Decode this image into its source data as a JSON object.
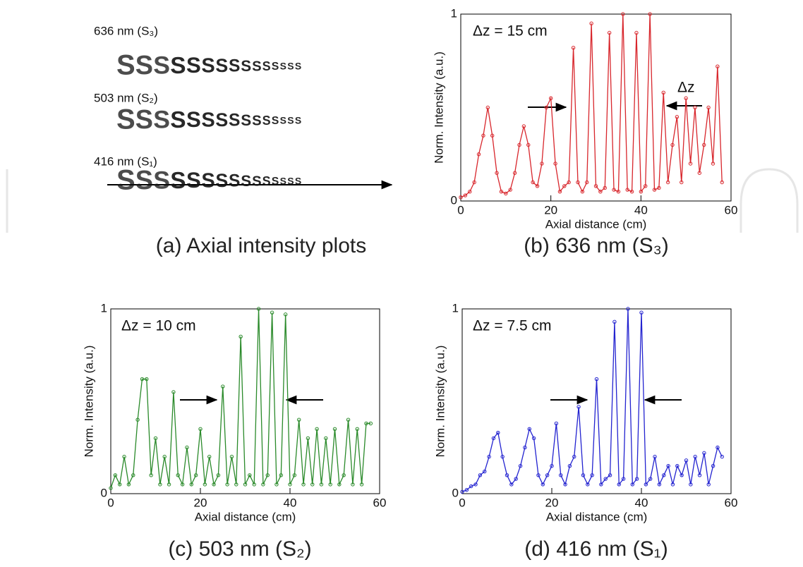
{
  "panel_a": {
    "caption": "(a) Axial intensity plots",
    "rows": [
      {
        "label": "636 nm (S₃)",
        "glyph": "S",
        "color": "#e0303a"
      },
      {
        "label": "503 nm (S₂)",
        "glyph": "S",
        "color": "#3fb83f"
      },
      {
        "label": "416 nm (S₁)",
        "glyph": "S",
        "color": "#3a6fd8"
      }
    ]
  },
  "chart_data": [
    {
      "type": "line",
      "caption": "(b) 636 nm (S₃)",
      "annotations": [
        "Δz = 15 cm",
        "Δz"
      ],
      "xlabel": "Axial distance (cm)",
      "ylabel": "Norm. Intensity (a.u.)",
      "xlim": [
        0,
        60
      ],
      "ylim": [
        0,
        1
      ],
      "xticks": [
        0,
        20,
        40,
        60
      ],
      "yticks": [
        0,
        1
      ],
      "x": [
        0,
        1,
        2,
        3,
        4,
        5,
        6,
        7,
        8,
        9,
        10,
        11,
        12,
        13,
        14,
        15,
        16,
        17,
        18,
        19,
        20,
        21,
        22,
        23,
        24,
        25,
        26,
        27,
        28,
        29,
        30,
        31,
        32,
        33,
        34,
        35,
        36,
        37,
        38,
        39,
        40,
        41,
        42,
        43,
        44,
        45,
        46,
        47,
        48,
        49,
        50,
        51,
        52,
        53,
        54,
        55,
        56,
        57,
        58
      ],
      "series": [
        {
          "color": "#d8262c",
          "values": [
            0.02,
            0.03,
            0.05,
            0.1,
            0.25,
            0.35,
            0.5,
            0.35,
            0.15,
            0.05,
            0.04,
            0.06,
            0.15,
            0.3,
            0.4,
            0.3,
            0.1,
            0.08,
            0.2,
            0.5,
            0.55,
            0.2,
            0.05,
            0.08,
            0.1,
            0.82,
            0.1,
            0.05,
            0.1,
            0.95,
            0.08,
            0.05,
            0.07,
            0.9,
            0.06,
            0.05,
            1.0,
            0.06,
            0.05,
            0.9,
            0.05,
            0.08,
            1.0,
            0.06,
            0.07,
            0.58,
            0.1,
            0.3,
            0.45,
            0.1,
            0.55,
            0.2,
            0.5,
            0.15,
            0.3,
            0.5,
            0.2,
            0.72,
            0.1
          ]
        }
      ]
    },
    {
      "type": "line",
      "caption": "(c) 503 nm (S₂)",
      "annotations": [
        "Δz = 10 cm"
      ],
      "xlabel": "Axial distance (cm)",
      "ylabel": "Norm. Intensity (a.u.)",
      "xlim": [
        0,
        60
      ],
      "ylim": [
        0,
        1
      ],
      "xticks": [
        0,
        20,
        40,
        60
      ],
      "yticks": [
        0,
        1
      ],
      "x": [
        0,
        1,
        2,
        3,
        4,
        5,
        6,
        7,
        8,
        9,
        10,
        11,
        12,
        13,
        14,
        15,
        16,
        17,
        18,
        19,
        20,
        21,
        22,
        23,
        24,
        25,
        26,
        27,
        28,
        29,
        30,
        31,
        32,
        33,
        34,
        35,
        36,
        37,
        38,
        39,
        40,
        41,
        42,
        43,
        44,
        45,
        46,
        47,
        48,
        49,
        50,
        51,
        52,
        53,
        54,
        55,
        56,
        57,
        58
      ],
      "series": [
        {
          "color": "#2a8a2a",
          "values": [
            0.03,
            0.1,
            0.05,
            0.2,
            0.05,
            0.1,
            0.4,
            0.62,
            0.62,
            0.1,
            0.3,
            0.05,
            0.2,
            0.05,
            0.55,
            0.1,
            0.05,
            0.25,
            0.05,
            0.1,
            0.35,
            0.05,
            0.2,
            0.05,
            0.1,
            0.58,
            0.05,
            0.2,
            0.05,
            0.85,
            0.05,
            0.1,
            0.05,
            1.0,
            0.05,
            0.1,
            0.98,
            0.05,
            0.1,
            0.97,
            0.05,
            0.1,
            0.4,
            0.05,
            0.3,
            0.05,
            0.35,
            0.05,
            0.3,
            0.05,
            0.35,
            0.05,
            0.1,
            0.4,
            0.05,
            0.35,
            0.05,
            0.38,
            0.38
          ]
        }
      ]
    },
    {
      "type": "line",
      "caption": "(d) 416 nm (S₁)",
      "annotations": [
        "Δz = 7.5 cm"
      ],
      "xlabel": "Axial distance (cm)",
      "ylabel": "Norm. Intensity (a.u.)",
      "xlim": [
        0,
        60
      ],
      "ylim": [
        0,
        1
      ],
      "xticks": [
        0,
        20,
        40,
        60
      ],
      "yticks": [
        0,
        1
      ],
      "x": [
        0,
        1,
        2,
        3,
        4,
        5,
        6,
        7,
        8,
        9,
        10,
        11,
        12,
        13,
        14,
        15,
        16,
        17,
        18,
        19,
        20,
        21,
        22,
        23,
        24,
        25,
        26,
        27,
        28,
        29,
        30,
        31,
        32,
        33,
        34,
        35,
        36,
        37,
        38,
        39,
        40,
        41,
        42,
        43,
        44,
        45,
        46,
        47,
        48,
        49,
        50,
        51,
        52,
        53,
        54,
        55,
        56,
        57,
        58
      ],
      "series": [
        {
          "color": "#2323d0",
          "values": [
            0.01,
            0.02,
            0.04,
            0.05,
            0.1,
            0.12,
            0.2,
            0.3,
            0.33,
            0.2,
            0.1,
            0.05,
            0.08,
            0.15,
            0.25,
            0.35,
            0.3,
            0.1,
            0.05,
            0.1,
            0.15,
            0.38,
            0.1,
            0.05,
            0.15,
            0.2,
            0.47,
            0.1,
            0.05,
            0.1,
            0.62,
            0.05,
            0.08,
            0.1,
            0.93,
            0.05,
            0.08,
            1.0,
            0.05,
            0.08,
            0.98,
            0.05,
            0.08,
            0.2,
            0.05,
            0.1,
            0.15,
            0.05,
            0.15,
            0.1,
            0.18,
            0.05,
            0.2,
            0.1,
            0.22,
            0.05,
            0.15,
            0.25,
            0.2
          ]
        }
      ]
    }
  ]
}
